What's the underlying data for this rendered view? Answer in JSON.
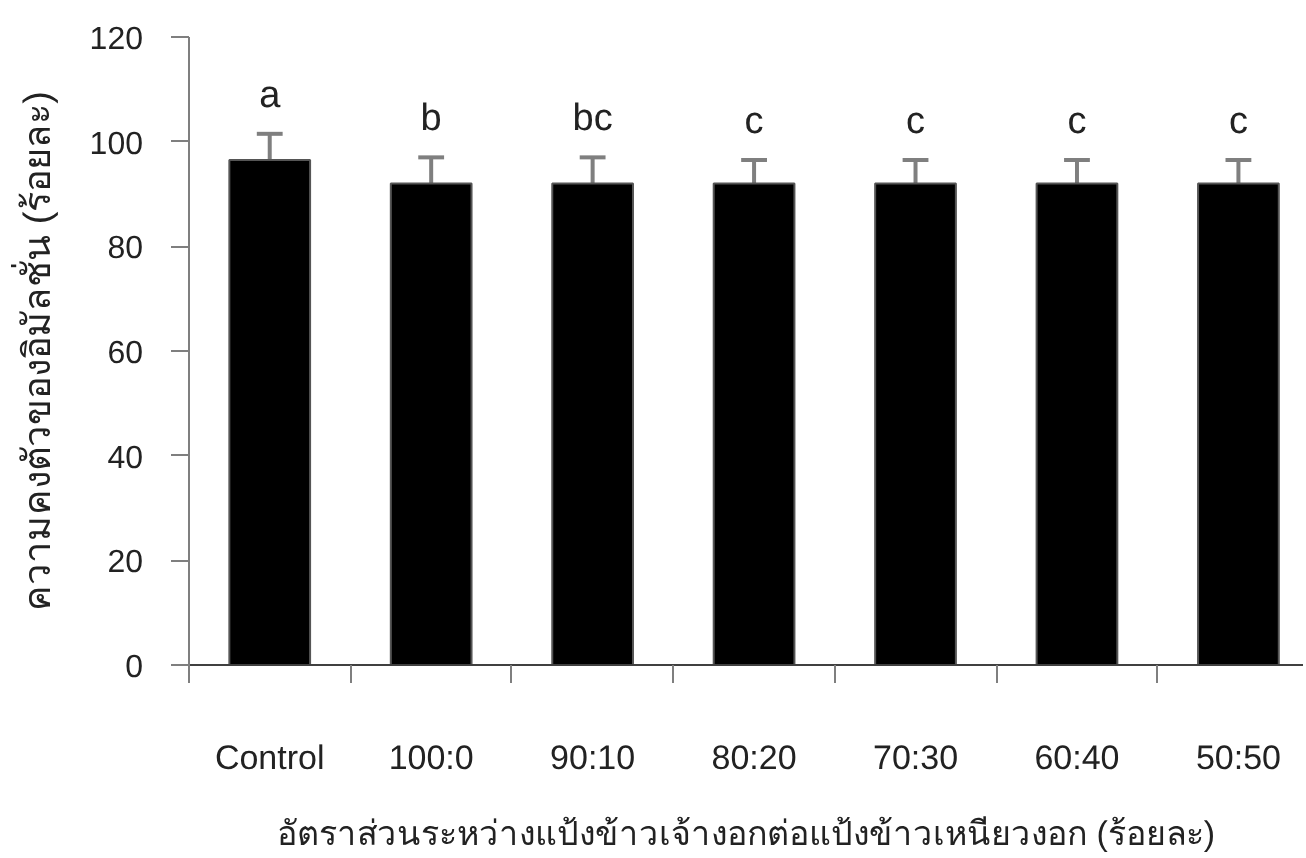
{
  "chart_data": {
    "type": "bar",
    "xlabel": "อัตราส่วนระหว่างแป้งข้าวเจ้างอกต่อแป้งข้าวเหนียวงอก (ร้อยละ)",
    "ylabel": "ความคงตัวของอิมัลชั่น (ร้อยละ)",
    "categories": [
      "Control",
      "100:0",
      "90:10",
      "80:20",
      "70:30",
      "60:40",
      "50:50"
    ],
    "values": [
      96.5,
      92,
      92,
      92,
      92,
      92,
      92
    ],
    "errors": [
      5,
      5,
      5,
      4.5,
      4.5,
      4.5,
      4.5
    ],
    "color": "#000000",
    "ylim": [
      0,
      120
    ],
    "yticks": [
      0,
      20,
      40,
      60,
      80,
      100,
      120
    ],
    "annotations": [
      "a",
      "b",
      "bc",
      "c",
      "c",
      "c",
      "c"
    ]
  }
}
